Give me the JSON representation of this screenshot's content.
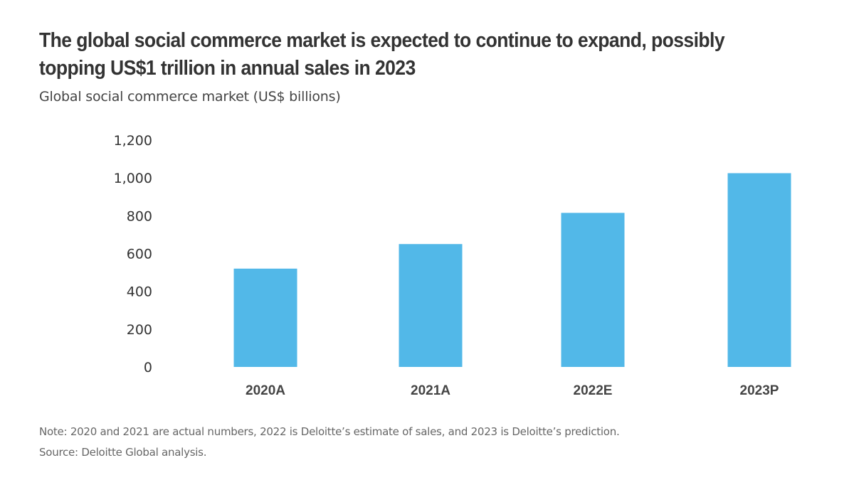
{
  "header": {
    "title": "The global social commerce market is expected to continue to expand, possibly topping US$1 trillion in annual sales in 2023",
    "subtitle": "Global social commerce market (US$ billions)"
  },
  "footer": {
    "note": "Note: 2020 and 2021 are actual numbers, 2022 is Deloitte’s estimate of sales, and 2023 is Deloitte’s prediction.",
    "source": "Source: Deloitte Global analysis."
  },
  "colors": {
    "bar": "#52b8e8",
    "title": "#333333",
    "axis_text": "#333333"
  },
  "chart_data": {
    "type": "bar",
    "title": "The global social commerce market is expected to continue to expand, possibly topping US$1 trillion in annual sales in 2023",
    "subtitle": "Global social commerce market (US$ billions)",
    "xlabel": "",
    "ylabel": "",
    "categories": [
      "2020A",
      "2021A",
      "2022E",
      "2023P"
    ],
    "values": [
      520,
      650,
      815,
      1025
    ],
    "ylim": [
      0,
      1200
    ],
    "yticks": [
      0,
      200,
      400,
      600,
      800,
      1000,
      1200
    ],
    "ytick_labels": [
      "0",
      "200",
      "400",
      "600",
      "800",
      "1,000",
      "1,200"
    ],
    "grid": false,
    "legend": "none",
    "units": "US$ billions"
  }
}
